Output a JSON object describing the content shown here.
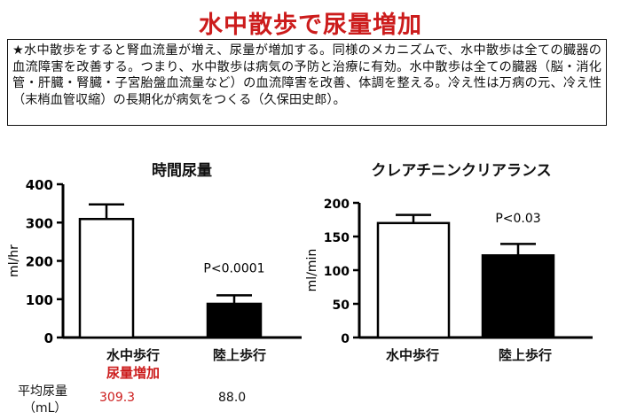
{
  "title": "水中散歩で尿量増加",
  "note": "★水中散歩をすると腎血流量が増え、尿量が増加する。同様のメカニズムで、水中散歩は全ての臓器の血流障害を改善する。つまり、水中散歩は病気の予防と治療に有効。水中散歩は全ての臓器（脳・消化管・肝臓・腎臓・子宮胎盤血流量など）の血流障害を改善、体調を整える。冷え性は万病の元、冷え性（末梢血管収縮）の長期化が病気をつくる（久保田史郎）。",
  "colors": {
    "title": "#cc1c1c",
    "highlight": "#cc1c1c",
    "bar_open": "#ffffff",
    "bar_filled": "#000000"
  },
  "chart_data": [
    {
      "type": "bar",
      "title": "時間尿量",
      "ylabel": "ml/hr",
      "ylim": [
        0,
        400
      ],
      "yticks": [
        0,
        100,
        200,
        300,
        400
      ],
      "categories": [
        "水中歩行",
        "陸上歩行"
      ],
      "values": [
        309.3,
        88.0
      ],
      "error": [
        38,
        22
      ],
      "fills": [
        "#ffffff",
        "#000000"
      ],
      "annotation": "P<0.0001",
      "annotation_y": 170,
      "sub_label": "尿量増加"
    },
    {
      "type": "bar",
      "title": "クレアチニンクリアランス",
      "ylabel": "ml/min",
      "ylim": [
        0,
        200
      ],
      "yticks": [
        0,
        50,
        100,
        150,
        200
      ],
      "categories": [
        "水中歩行",
        "陸上歩行"
      ],
      "values": [
        170,
        122
      ],
      "error": [
        12,
        17
      ],
      "fills": [
        "#ffffff",
        "#000000"
      ],
      "annotation": "P<0.03",
      "annotation_y": 171
    }
  ],
  "footer": {
    "label_line1": "平均尿量",
    "label_line2": "（mL）",
    "value1": "309.3",
    "value2": "88.0"
  }
}
